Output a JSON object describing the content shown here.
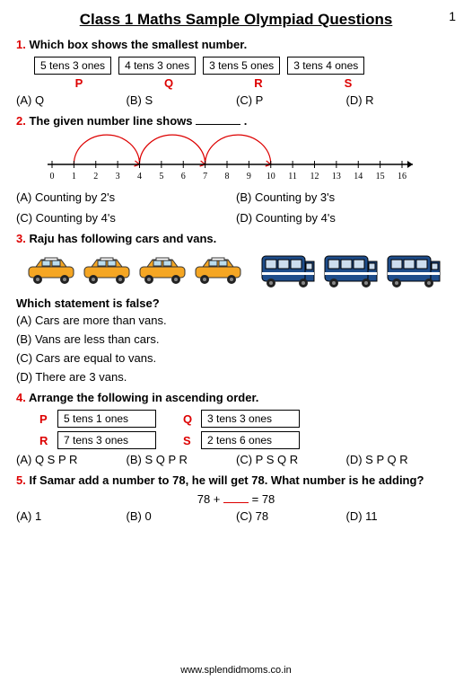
{
  "page_number": "1",
  "title": "Class 1 Maths Sample Olympiad Questions",
  "footer": "www.splendidmoms.co.in",
  "colors": {
    "accent": "#d00",
    "text": "#000",
    "car_body": "#f5a623",
    "van_body": "#1e4d8b"
  },
  "q1": {
    "num": "1.",
    "text": "Which box shows the smallest number.",
    "boxes": [
      "5 tens 3 ones",
      "4 tens 3 ones",
      "3 tens 5 ones",
      "3 tens 4 ones"
    ],
    "labels": [
      "P",
      "Q",
      "R",
      "S"
    ],
    "options": [
      "(A) Q",
      "(B) S",
      "(C) P",
      "(D) R"
    ]
  },
  "q2": {
    "num": "2.",
    "text_pre": "The given number line shows ",
    "text_post": " .",
    "ticks": [
      "0",
      "1",
      "2",
      "3",
      "4",
      "5",
      "6",
      "7",
      "8",
      "9",
      "10",
      "11",
      "12",
      "13",
      "14",
      "15",
      "16"
    ],
    "arcs": [
      [
        1,
        4
      ],
      [
        4,
        7
      ],
      [
        7,
        10
      ]
    ],
    "arc_color": "#d00",
    "options": [
      "(A) Counting by 2's",
      "(B) Counting by 3's",
      "(C) Counting by 4's",
      "(D) Counting by 4's"
    ]
  },
  "q3": {
    "num": "3.",
    "text": "Raju has following cars and vans.",
    "cars": 4,
    "vans": 3,
    "subq": "Which statement is false?",
    "options": [
      "(A) Cars are more than vans.",
      "(B) Vans are less than cars.",
      "(C) Cars are equal to vans.",
      "(D) There are 3 vans."
    ]
  },
  "q4": {
    "num": "4.",
    "text": "Arrange the following in ascending order.",
    "items": [
      {
        "label": "P",
        "box": "5 tens 1 ones"
      },
      {
        "label": "Q",
        "box": "3 tens 3 ones"
      },
      {
        "label": "R",
        "box": "7 tens 3 ones"
      },
      {
        "label": "S",
        "box": "2 tens 6 ones"
      }
    ],
    "options": [
      "(A) Q S P R",
      "(B) S Q P R",
      "(C) P S Q R",
      "(D) S P Q R"
    ]
  },
  "q5": {
    "num": "5.",
    "text": "If Samar add a number to 78, he will get 78. What number is he adding?",
    "eq_left": "78 + ",
    "eq_right": " = 78",
    "options": [
      "(A) 1",
      "(B) 0",
      "(C) 78",
      "(D) 11"
    ]
  }
}
